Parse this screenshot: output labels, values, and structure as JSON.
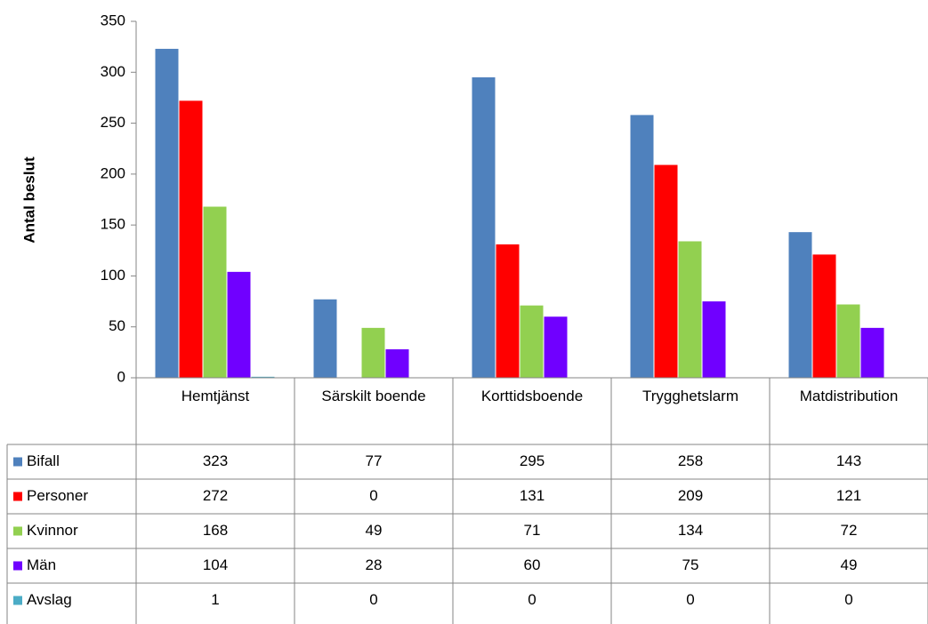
{
  "chart_data": {
    "type": "bar",
    "y_label": "Antal beslut",
    "categories": [
      "Hemtjänst",
      "Särskilt boende",
      "Korttidsboende",
      "Trygghetslarm",
      "Matdistribution"
    ],
    "series": [
      {
        "name": "Bifall",
        "color": "#4f81bd",
        "values": [
          323,
          77,
          295,
          258,
          143
        ]
      },
      {
        "name": "Personer",
        "color": "#ff0000",
        "values": [
          272,
          0,
          131,
          209,
          121
        ]
      },
      {
        "name": "Kvinnor",
        "color": "#92d050",
        "values": [
          168,
          49,
          71,
          134,
          72
        ]
      },
      {
        "name": "Män",
        "color": "#7000ff",
        "values": [
          104,
          28,
          60,
          75,
          49
        ]
      },
      {
        "name": "Avslag",
        "color": "#4bacc6",
        "values": [
          1,
          0,
          0,
          0,
          0
        ]
      }
    ],
    "ylim": [
      0,
      350
    ],
    "yticks": [
      0,
      50,
      100,
      150,
      200,
      250,
      300,
      350
    ],
    "grid": false
  }
}
